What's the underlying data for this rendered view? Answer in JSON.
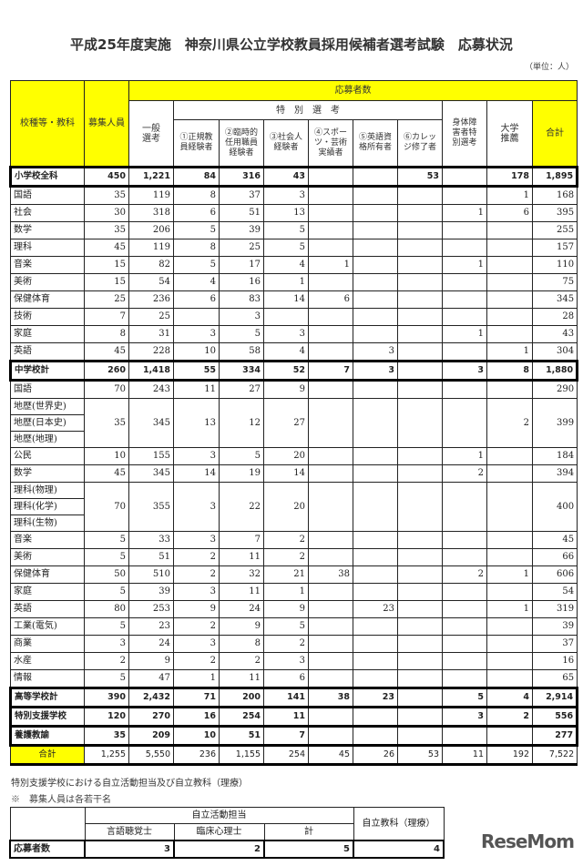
{
  "title": "平成25年度実施　神奈川県公立学校教員採用候補者選考試験　応募状況",
  "unit": "（単位：人）",
  "header": {
    "category": "校種等・教科",
    "capacity": "募集人員",
    "applicants": "応募者数",
    "general": "一般選考",
    "special": "特　別　選　考",
    "special_cols": [
      "①正規教員経験者",
      "②臨時的任用職員経験者",
      "③社会人経験者",
      "④スポーツ・芸術実績者",
      "⑤英語資格所有者",
      "⑥カレッジ修了者"
    ],
    "disabled": "身体障害者特別選考",
    "university": "大学推薦",
    "total": "合計"
  },
  "colors": {
    "header_yellow": "#ffff00"
  },
  "rows": [
    {
      "label": "小学校全科",
      "type": "tot",
      "values": [
        "450",
        "1,221",
        "84",
        "316",
        "43",
        "",
        "",
        "53",
        "",
        "178",
        "1,895"
      ]
    },
    {
      "label": "国語",
      "values": [
        "35",
        "119",
        "8",
        "37",
        "3",
        "",
        "",
        "",
        "",
        "1",
        "168"
      ]
    },
    {
      "label": "社会",
      "values": [
        "30",
        "318",
        "6",
        "51",
        "13",
        "",
        "",
        "",
        "1",
        "6",
        "395"
      ]
    },
    {
      "label": "数学",
      "values": [
        "35",
        "206",
        "5",
        "39",
        "5",
        "",
        "",
        "",
        "",
        "",
        "255"
      ]
    },
    {
      "label": "理科",
      "values": [
        "45",
        "119",
        "8",
        "25",
        "5",
        "",
        "",
        "",
        "",
        "",
        "157"
      ]
    },
    {
      "label": "音楽",
      "values": [
        "15",
        "82",
        "5",
        "17",
        "4",
        "1",
        "",
        "",
        "1",
        "",
        "110"
      ]
    },
    {
      "label": "美術",
      "values": [
        "15",
        "54",
        "4",
        "16",
        "1",
        "",
        "",
        "",
        "",
        "",
        "75"
      ]
    },
    {
      "label": "保健体育",
      "values": [
        "25",
        "236",
        "6",
        "83",
        "14",
        "6",
        "",
        "",
        "",
        "",
        "345"
      ]
    },
    {
      "label": "技術",
      "values": [
        "7",
        "25",
        "",
        "3",
        "",
        "",
        "",
        "",
        "",
        "",
        "28"
      ]
    },
    {
      "label": "家庭",
      "values": [
        "8",
        "31",
        "3",
        "5",
        "3",
        "",
        "",
        "",
        "1",
        "",
        "43"
      ]
    },
    {
      "label": "英語",
      "values": [
        "45",
        "228",
        "10",
        "58",
        "4",
        "",
        "3",
        "",
        "",
        "1",
        "304"
      ]
    },
    {
      "label": "中学校計",
      "type": "tot",
      "values": [
        "260",
        "1,418",
        "55",
        "334",
        "52",
        "7",
        "3",
        "",
        "3",
        "8",
        "1,880"
      ]
    },
    {
      "label": "国語",
      "values": [
        "70",
        "243",
        "11",
        "27",
        "9",
        "",
        "",
        "",
        "",
        "",
        "290"
      ]
    },
    {
      "labels": [
        "地歴(世界史)",
        "地歴(日本史)",
        "地歴(地理)"
      ],
      "values": [
        "35",
        "345",
        "13",
        "12",
        "27",
        "",
        "",
        "",
        "",
        "2",
        "399"
      ]
    },
    {
      "label": "公民",
      "values": [
        "10",
        "155",
        "3",
        "5",
        "20",
        "",
        "",
        "",
        "1",
        "",
        "184"
      ]
    },
    {
      "label": "数学",
      "values": [
        "45",
        "345",
        "14",
        "19",
        "14",
        "",
        "",
        "",
        "2",
        "",
        "394"
      ]
    },
    {
      "labels": [
        "理科(物理)",
        "理科(化学)",
        "理科(生物)"
      ],
      "values": [
        "70",
        "355",
        "3",
        "22",
        "20",
        "",
        "",
        "",
        "",
        "",
        "400"
      ]
    },
    {
      "label": "音楽",
      "values": [
        "5",
        "33",
        "3",
        "7",
        "2",
        "",
        "",
        "",
        "",
        "",
        "45"
      ]
    },
    {
      "label": "美術",
      "values": [
        "5",
        "51",
        "2",
        "11",
        "2",
        "",
        "",
        "",
        "",
        "",
        "66"
      ]
    },
    {
      "label": "保健体育",
      "values": [
        "50",
        "510",
        "2",
        "32",
        "21",
        "38",
        "",
        "",
        "2",
        "1",
        "606"
      ]
    },
    {
      "label": "家庭",
      "values": [
        "5",
        "39",
        "3",
        "11",
        "1",
        "",
        "",
        "",
        "",
        "",
        "54"
      ]
    },
    {
      "label": "英語",
      "values": [
        "80",
        "253",
        "9",
        "24",
        "9",
        "",
        "23",
        "",
        "",
        "1",
        "319"
      ]
    },
    {
      "label": "工業(電気)",
      "values": [
        "5",
        "23",
        "2",
        "9",
        "5",
        "",
        "",
        "",
        "",
        "",
        "39"
      ]
    },
    {
      "label": "商業",
      "values": [
        "3",
        "24",
        "3",
        "8",
        "2",
        "",
        "",
        "",
        "",
        "",
        "37"
      ]
    },
    {
      "label": "水産",
      "values": [
        "2",
        "9",
        "2",
        "2",
        "3",
        "",
        "",
        "",
        "",
        "",
        "16"
      ]
    },
    {
      "label": "情報",
      "values": [
        "5",
        "47",
        "1",
        "11",
        "6",
        "",
        "",
        "",
        "",
        "",
        "65"
      ]
    },
    {
      "label": "高等学校計",
      "type": "tot",
      "values": [
        "390",
        "2,432",
        "71",
        "200",
        "141",
        "38",
        "23",
        "",
        "5",
        "4",
        "2,914"
      ]
    },
    {
      "label": "特別支援学校",
      "type": "tot",
      "values": [
        "120",
        "270",
        "16",
        "254",
        "11",
        "",
        "",
        "",
        "3",
        "2",
        "556"
      ]
    },
    {
      "label": "養護教諭",
      "type": "tot",
      "values": [
        "35",
        "209",
        "10",
        "51",
        "7",
        "",
        "",
        "",
        "",
        "",
        "277"
      ]
    },
    {
      "label": "合計",
      "type": "grand",
      "values": [
        "1,255",
        "5,550",
        "236",
        "1,155",
        "254",
        "45",
        "26",
        "53",
        "11",
        "192",
        "7,522"
      ]
    }
  ],
  "sub_section": {
    "title": "特別支援学校における自立活動担当及び自立教科（理療）",
    "note": "※　募集人員は各若干名",
    "group": "自立活動担当",
    "cols": [
      "言語聴覚士",
      "臨床心理士",
      "計"
    ],
    "other": "自立教科（理療）",
    "row_label": "応募者数",
    "values": [
      "3",
      "2",
      "5",
      "4"
    ]
  },
  "logo": "ReseMom"
}
